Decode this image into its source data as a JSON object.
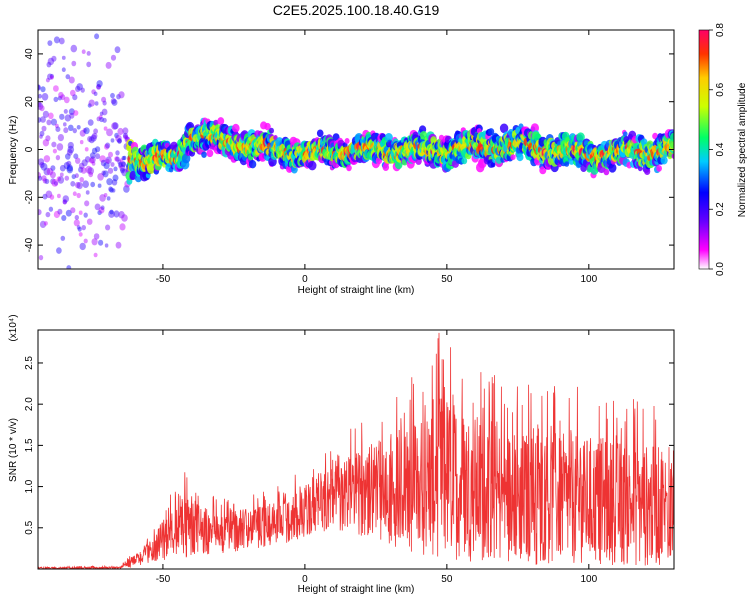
{
  "figure_title": "C2E5.2025.100.18.40.G19",
  "colors": {
    "snr_line": "#ee3333",
    "frame": "#000000"
  },
  "chart_data": [
    {
      "type": "heatmap",
      "xlabel": "Height of straight line (km)",
      "ylabel": "Frequency (Hz)",
      "xlim": [
        -94,
        130
      ],
      "ylim": [
        -50,
        50
      ],
      "xticks": [
        "-50",
        "0",
        "50",
        "100"
      ],
      "yticks": [
        "-40",
        "-20",
        "0",
        "20",
        "40"
      ],
      "colorbar": {
        "label": "Normalized spectral amplitude",
        "range": [
          0.0,
          0.8
        ],
        "ticks": [
          "0.0",
          "0.2",
          "0.4",
          "0.6",
          "0.8"
        ],
        "colormap": "rainbow (magenta-blue-cyan-green-yellow-red)"
      },
      "description_points": [
        {
          "x": -90,
          "center_hz": 0,
          "spread_hz": 45
        },
        {
          "x": -70,
          "center_hz": 0,
          "spread_hz": 40
        },
        {
          "x": -60,
          "center_hz": -4,
          "spread_hz": 6
        },
        {
          "x": -45,
          "center_hz": -4,
          "spread_hz": 6
        },
        {
          "x": -40,
          "center_hz": 6,
          "spread_hz": 6
        },
        {
          "x": -20,
          "center_hz": 2,
          "spread_hz": 6
        },
        {
          "x": 0,
          "center_hz": -2,
          "spread_hz": 5
        },
        {
          "x": 20,
          "center_hz": 0,
          "spread_hz": 5
        },
        {
          "x": 50,
          "center_hz": 0,
          "spread_hz": 6
        },
        {
          "x": 75,
          "center_hz": 2,
          "spread_hz": 6
        },
        {
          "x": 100,
          "center_hz": -2,
          "spread_hz": 6
        },
        {
          "x": 130,
          "center_hz": 0,
          "spread_hz": 6
        }
      ]
    },
    {
      "type": "line",
      "xlabel": "Height of straight line (km)",
      "ylabel": "SNR (10 * v/v)",
      "y_multiplier": "(x10⁴)",
      "xlim": [
        -94,
        130
      ],
      "ylim": [
        0,
        2.9
      ],
      "xticks": [
        "-50",
        "0",
        "50",
        "100"
      ],
      "yticks": [
        "0.5",
        "1.0",
        "1.5",
        "2.0",
        "2.5"
      ],
      "series": [
        {
          "envelope": [
            {
              "x": -94,
              "base": 0.0,
              "peak": 0.03
            },
            {
              "x": -65,
              "base": 0.0,
              "peak": 0.04
            },
            {
              "x": -58,
              "base": 0.05,
              "peak": 0.3
            },
            {
              "x": -52,
              "base": 0.1,
              "peak": 0.6
            },
            {
              "x": -45,
              "base": 0.15,
              "peak": 1.25
            },
            {
              "x": -30,
              "base": 0.2,
              "peak": 0.85
            },
            {
              "x": -10,
              "base": 0.3,
              "peak": 1.0
            },
            {
              "x": 10,
              "base": 0.5,
              "peak": 1.5
            },
            {
              "x": 25,
              "base": 0.4,
              "peak": 2.0
            },
            {
              "x": 40,
              "base": 0.2,
              "peak": 2.4
            },
            {
              "x": 47,
              "base": 0.2,
              "peak": 2.9
            },
            {
              "x": 70,
              "base": 0.1,
              "peak": 2.3
            },
            {
              "x": 100,
              "base": 0.1,
              "peak": 2.2
            },
            {
              "x": 130,
              "base": 0.05,
              "peak": 2.0
            }
          ]
        }
      ]
    }
  ]
}
